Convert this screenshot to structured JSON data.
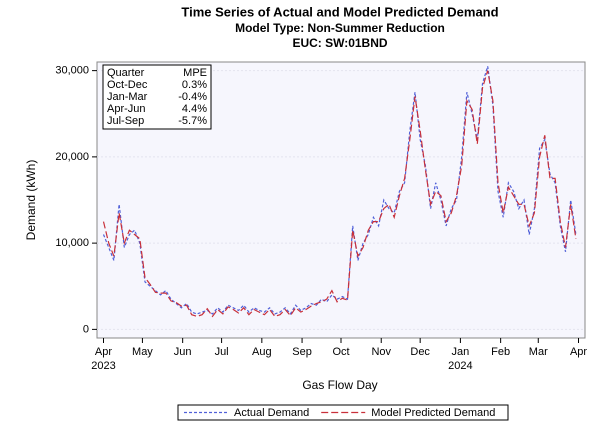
{
  "chart_data": {
    "type": "line",
    "title": "Time Series of Actual and Model Predicted Demand",
    "subtitles": [
      "Model Type: Non-Summer Reduction",
      "EUC: SW:01BND"
    ],
    "x_label": "Gas Flow Day",
    "y_label": "Demand (kWh)",
    "x": [
      0,
      4,
      8,
      12,
      16,
      20,
      24,
      28,
      32,
      36,
      40,
      44,
      48,
      52,
      56,
      60,
      64,
      68,
      72,
      76,
      80,
      84,
      88,
      92,
      96,
      100,
      104,
      108,
      112,
      116,
      120,
      124,
      128,
      132,
      136,
      140,
      144,
      148,
      152,
      156,
      160,
      164,
      168,
      172,
      176,
      180,
      184,
      188,
      192,
      196,
      200,
      204,
      208,
      212,
      216,
      220,
      224,
      228,
      232,
      236,
      240,
      244,
      248,
      252,
      256,
      260,
      264,
      268,
      272,
      276,
      280,
      284,
      288,
      292,
      296,
      300,
      304,
      308,
      312,
      316,
      320,
      324,
      328,
      332,
      336,
      340,
      344,
      348,
      352,
      356,
      360,
      364
    ],
    "series": [
      {
        "name": "Actual Demand",
        "color": "#5060d8",
        "dash": "3,2",
        "values": [
          11000,
          9500,
          8000,
          14500,
          9500,
          11000,
          11500,
          10000,
          5500,
          5000,
          4500,
          4000,
          4500,
          3500,
          3000,
          2500,
          3000,
          2000,
          1800,
          2000,
          2200,
          1800,
          2500,
          2000,
          2800,
          2500,
          2200,
          2800,
          2000,
          2500,
          2200,
          2000,
          2500,
          1800,
          2000,
          2500,
          1800,
          2800,
          2200,
          2500,
          3000,
          2800,
          3500,
          3200,
          4000,
          3500,
          3800,
          3500,
          12000,
          8000,
          10000,
          11000,
          13000,
          12000,
          15000,
          14000,
          13500,
          16000,
          17000,
          23000,
          27500,
          22000,
          19000,
          14000,
          17000,
          15000,
          12000,
          14000,
          15000,
          20000,
          27500,
          25000,
          22000,
          28500,
          30500,
          26000,
          16000,
          13000,
          17000,
          16000,
          14000,
          15000,
          11000,
          14000,
          21000,
          22000,
          18000,
          17000,
          12000,
          9000,
          15000,
          11000
        ]
      },
      {
        "name": "Model Predicted Demand",
        "color": "#c8303a",
        "dash": "7,3",
        "values": [
          12500,
          10000,
          8500,
          13500,
          10000,
          11500,
          11000,
          10500,
          6000,
          5200,
          4300,
          4200,
          4200,
          3300,
          3100,
          2700,
          2800,
          1700,
          1500,
          1700,
          2400,
          1500,
          2300,
          1800,
          2600,
          2300,
          1900,
          2500,
          1700,
          2300,
          2000,
          1700,
          2300,
          1500,
          1700,
          2300,
          1600,
          2500,
          2000,
          2300,
          2700,
          3000,
          3200,
          3500,
          4500,
          3200,
          3600,
          3400,
          11500,
          8500,
          9500,
          11500,
          12500,
          12500,
          14000,
          14500,
          13000,
          15500,
          17500,
          22000,
          27000,
          23000,
          18500,
          14500,
          16000,
          15500,
          12500,
          13500,
          15500,
          19000,
          26500,
          25500,
          21500,
          28000,
          30000,
          26500,
          17000,
          13500,
          16500,
          15500,
          14500,
          14500,
          12000,
          13500,
          20000,
          22500,
          17500,
          17500,
          12500,
          9500,
          14500,
          10500
        ]
      }
    ],
    "xlim": [
      -5,
      371
    ],
    "xticks": [
      {
        "value": 0,
        "label": "Apr"
      },
      {
        "value": 30,
        "label": "May"
      },
      {
        "value": 61,
        "label": "Jun"
      },
      {
        "value": 91,
        "label": "Jul"
      },
      {
        "value": 122,
        "label": "Aug"
      },
      {
        "value": 153,
        "label": "Sep"
      },
      {
        "value": 183,
        "label": "Oct"
      },
      {
        "value": 214,
        "label": "Nov"
      },
      {
        "value": 244,
        "label": "Dec"
      },
      {
        "value": 275,
        "label": "Jan"
      },
      {
        "value": 306,
        "label": "Feb"
      },
      {
        "value": 335,
        "label": "Mar"
      },
      {
        "value": 366,
        "label": "Apr"
      }
    ],
    "year_labels": [
      {
        "value": 0,
        "label": "2023"
      },
      {
        "value": 275,
        "label": "2024"
      }
    ],
    "ylim": [
      -1000,
      31000
    ],
    "yticks": [
      0,
      {
        "value": 10000,
        "label": "10,000"
      },
      {
        "value": 20000,
        "label": "20,000"
      },
      {
        "value": 30000,
        "label": "30,000"
      }
    ],
    "grid": true,
    "legend": "bottom",
    "mpe_table": {
      "header": [
        "Quarter",
        "MPE"
      ],
      "rows": [
        [
          "Oct-Dec",
          "0.3%"
        ],
        [
          "Jan-Mar",
          "-0.4%"
        ],
        [
          "Apr-Jun",
          "4.4%"
        ],
        [
          "Jul-Sep",
          "-5.7%"
        ]
      ]
    }
  }
}
